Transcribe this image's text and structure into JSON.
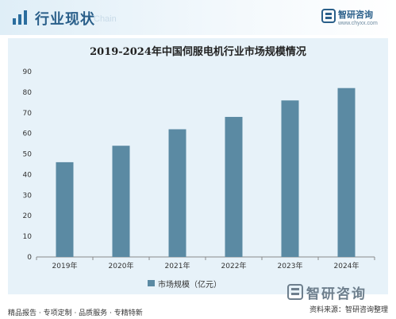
{
  "header": {
    "title": "行业现状",
    "watermark": "Chain",
    "brand_name": "智研咨询",
    "brand_url": "www.chyxx.com"
  },
  "chart_data": {
    "type": "bar",
    "title": "2019-2024年中国伺服电机行业市场规模情况",
    "categories": [
      "2019年",
      "2020年",
      "2021年",
      "2022年",
      "2023年",
      "2024年"
    ],
    "series": [
      {
        "name": "市场规模（亿元）",
        "values": [
          46,
          54,
          62,
          68,
          76,
          82
        ]
      }
    ],
    "ylim": [
      0,
      90
    ],
    "yticks": [
      0,
      10,
      20,
      30,
      40,
      50,
      60,
      70,
      80,
      90
    ],
    "grid": false,
    "legend_position": "bottom-center",
    "bar_color": "#5b8aa3"
  },
  "legend": {
    "label": "市场规模（亿元）"
  },
  "footer": {
    "tags": "精品报告 · 专项定制 · 品质服务 · 专精特新",
    "logo_text": "智研咨询",
    "source": "资料来源：智研咨询整理"
  }
}
